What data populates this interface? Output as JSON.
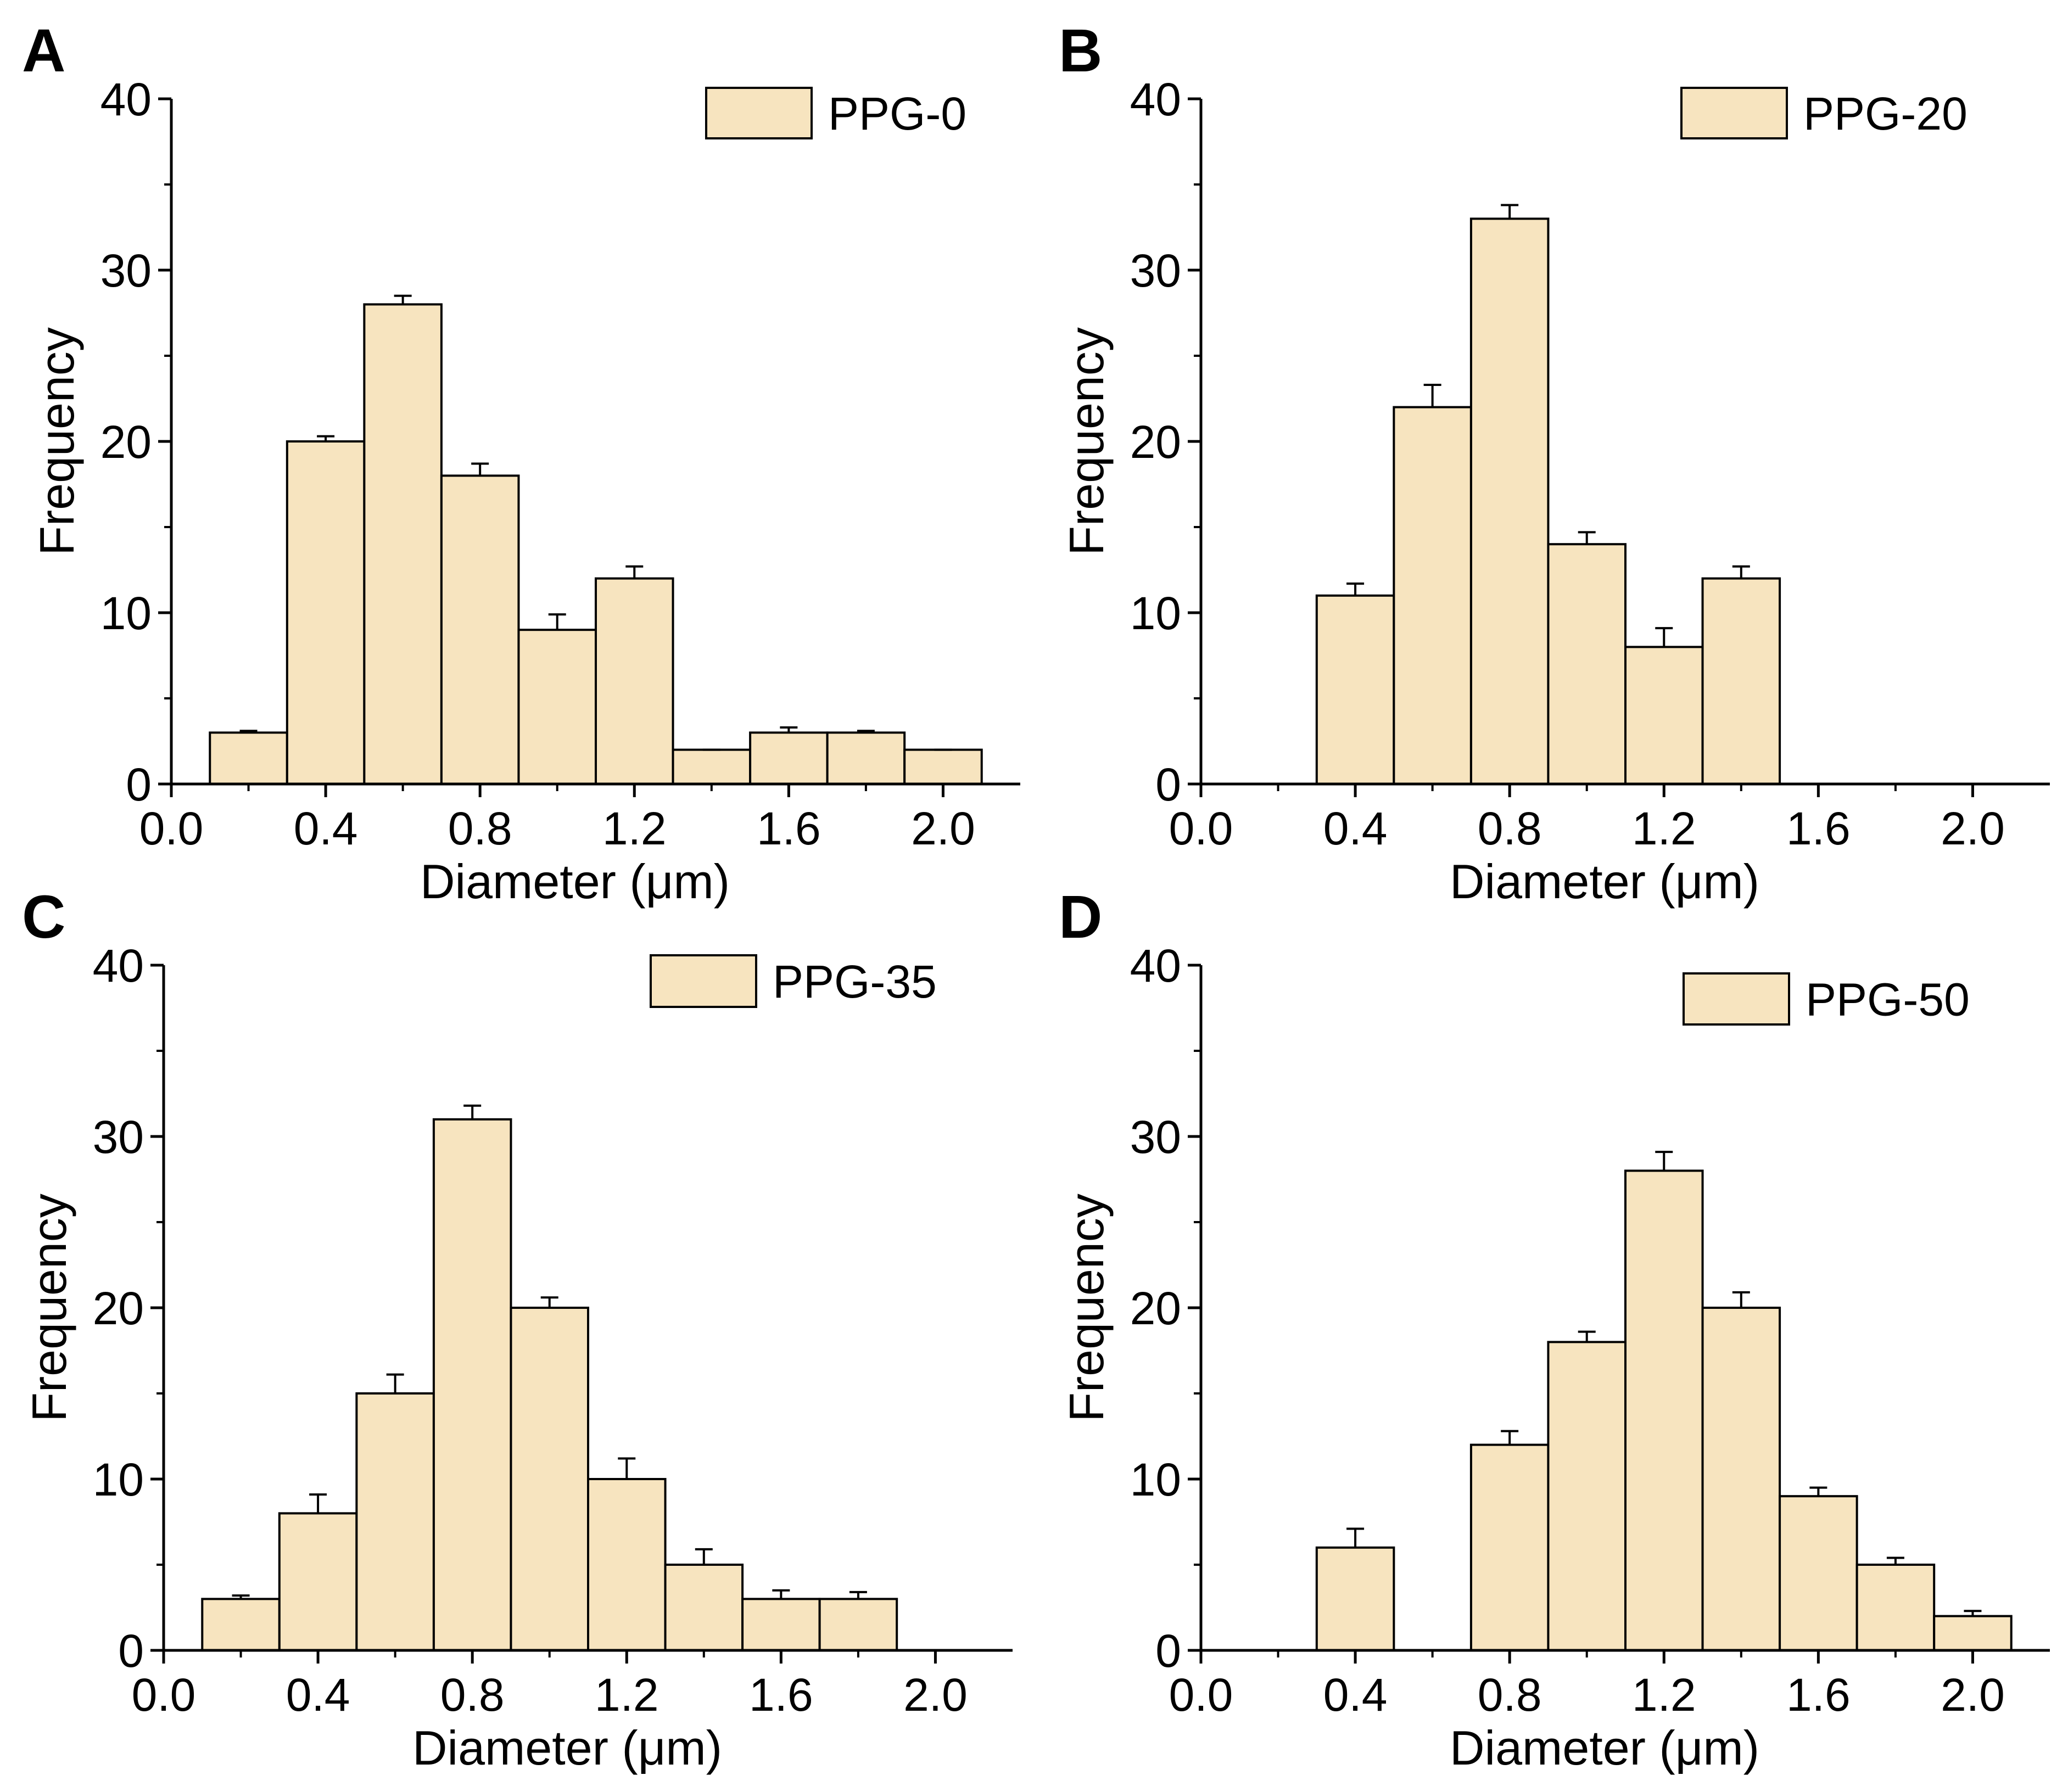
{
  "colors": {
    "bar_fill": "#F7E4BF",
    "bar_stroke": "#000000",
    "axis": "#000000"
  },
  "chart_data": [
    {
      "panel": "A",
      "type": "bar",
      "legend": "PPG-0",
      "legend_position": "top-right",
      "xlabel": "Diameter (μm)",
      "ylabel": "Frequency",
      "xlim": [
        0.0,
        2.2
      ],
      "ylim": [
        0,
        40
      ],
      "xticks": [
        "0.0",
        "0.4",
        "0.8",
        "1.2",
        "1.6",
        "2.0"
      ],
      "yticks": [
        "0",
        "10",
        "20",
        "30",
        "40"
      ],
      "bin_width": 0.2,
      "x": [
        0.2,
        0.4,
        0.6,
        0.8,
        1.0,
        1.2,
        1.4,
        1.6,
        1.8,
        2.0
      ],
      "values": [
        3,
        20,
        28,
        18,
        9,
        12,
        2,
        3,
        3,
        2
      ],
      "errors": [
        0.1,
        0.3,
        0.5,
        0.7,
        0.9,
        0.7,
        0.0,
        0.3,
        0.1,
        0.0
      ]
    },
    {
      "panel": "B",
      "type": "bar",
      "legend": "PPG-20",
      "legend_position": "top-right",
      "xlabel": "Diameter (μm)",
      "ylabel": "Frequency",
      "xlim": [
        0.0,
        2.2
      ],
      "ylim": [
        0,
        40
      ],
      "xticks": [
        "0.0",
        "0.4",
        "0.8",
        "1.2",
        "1.6",
        "2.0"
      ],
      "yticks": [
        "0",
        "10",
        "20",
        "30",
        "40"
      ],
      "bin_width": 0.2,
      "x": [
        0.4,
        0.6,
        0.8,
        1.0,
        1.2,
        1.4
      ],
      "values": [
        11,
        22,
        33,
        14,
        8,
        12
      ],
      "errors": [
        0.7,
        1.3,
        0.8,
        0.7,
        1.1,
        0.7
      ]
    },
    {
      "panel": "C",
      "type": "bar",
      "legend": "PPG-35",
      "legend_position": "top-right",
      "xlabel": "Diameter (μm)",
      "ylabel": "Frequency",
      "xlim": [
        0.0,
        2.2
      ],
      "ylim": [
        0,
        40
      ],
      "xticks": [
        "0.0",
        "0.4",
        "0.8",
        "1.2",
        "1.6",
        "2.0"
      ],
      "yticks": [
        "0",
        "10",
        "20",
        "30",
        "40"
      ],
      "bin_width": 0.2,
      "x": [
        0.2,
        0.4,
        0.6,
        0.8,
        1.0,
        1.2,
        1.4,
        1.6,
        1.8
      ],
      "values": [
        3,
        8,
        15,
        31,
        20,
        10,
        5,
        3,
        3
      ],
      "errors": [
        0.2,
        1.1,
        1.1,
        0.8,
        0.6,
        1.2,
        0.9,
        0.5,
        0.4
      ]
    },
    {
      "panel": "D",
      "type": "bar",
      "legend": "PPG-50",
      "legend_position": "top-right",
      "xlabel": "Diameter (μm)",
      "ylabel": "Frequency",
      "xlim": [
        0.0,
        2.2
      ],
      "ylim": [
        0,
        40
      ],
      "xticks": [
        "0.0",
        "0.4",
        "0.8",
        "1.2",
        "1.6",
        "2.0"
      ],
      "yticks": [
        "0",
        "10",
        "20",
        "30",
        "40"
      ],
      "bin_width": 0.2,
      "x": [
        0.4,
        0.8,
        1.0,
        1.2,
        1.4,
        1.6,
        1.8,
        2.0
      ],
      "values": [
        6,
        12,
        18,
        28,
        20,
        9,
        5,
        2
      ],
      "errors": [
        1.1,
        0.8,
        0.6,
        1.1,
        0.9,
        0.5,
        0.4,
        0.3
      ]
    }
  ]
}
